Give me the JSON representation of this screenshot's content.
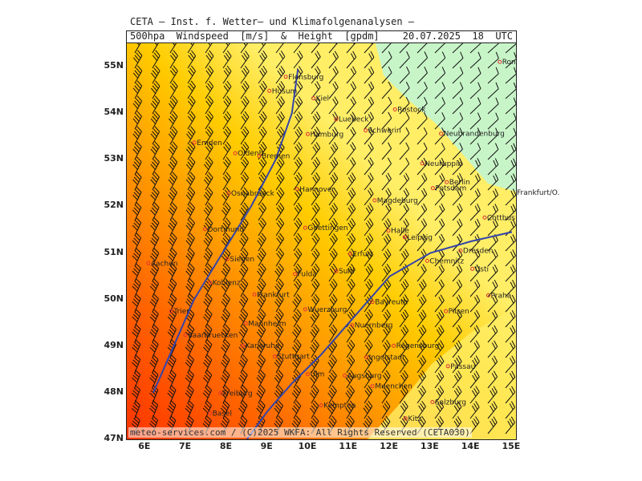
{
  "title": "CETA – Inst. f. Wetter– und Klimafolgenanalysen –",
  "header": {
    "product": "500hpa  Windspeed  [m/s]  &  Height  [gpdm]",
    "valid_time": "20.07.2025  18  UTC"
  },
  "copyright": "meteo-services.com / (C)2025 WKFA: All Rights Reserved (CETA030)",
  "axes": {
    "lat_labels": [
      "55N",
      "54N",
      "53N",
      "52N",
      "51N",
      "50N",
      "49N",
      "48N",
      "47N"
    ],
    "lon_labels": [
      "6E",
      "7E",
      "8E",
      "9E",
      "10E",
      "11E",
      "12E",
      "13E",
      "14E",
      "15E"
    ]
  },
  "colors": {
    "red": "#ff3300",
    "orange": "#ff9900",
    "amber": "#ffcc00",
    "yellow": "#ffee66",
    "light_green": "#c8f5c8",
    "contour": "#3344aa",
    "barb": "#111111",
    "city_marker": "#dd3333"
  },
  "cities": [
    {
      "name": "Flensburg",
      "lon": 9.45,
      "lat": 54.78
    },
    {
      "name": "Husum",
      "lon": 9.05,
      "lat": 54.48
    },
    {
      "name": "Kiel",
      "lon": 10.13,
      "lat": 54.32
    },
    {
      "name": "Rostock",
      "lon": 12.13,
      "lat": 54.08
    },
    {
      "name": "Luebeck",
      "lon": 10.69,
      "lat": 53.87
    },
    {
      "name": "Schwerin",
      "lon": 11.41,
      "lat": 53.63
    },
    {
      "name": "Neubrandenburg",
      "lon": 13.26,
      "lat": 53.56
    },
    {
      "name": "Hamburg",
      "lon": 9.99,
      "lat": 53.55
    },
    {
      "name": "Emden",
      "lon": 7.21,
      "lat": 53.37
    },
    {
      "name": "Oldenb.",
      "lon": 8.21,
      "lat": 53.14
    },
    {
      "name": "Bremen",
      "lon": 8.8,
      "lat": 53.08
    },
    {
      "name": "Neuruppin",
      "lon": 12.8,
      "lat": 52.92
    },
    {
      "name": "Berlin",
      "lon": 13.4,
      "lat": 52.52
    },
    {
      "name": "Potsdam",
      "lon": 13.06,
      "lat": 52.39
    },
    {
      "name": "Hannover",
      "lon": 9.73,
      "lat": 52.37
    },
    {
      "name": "Osnabrueck",
      "lon": 8.05,
      "lat": 52.28
    },
    {
      "name": "Magdeburg",
      "lon": 11.63,
      "lat": 52.13
    },
    {
      "name": "Cottbus",
      "lon": 14.33,
      "lat": 51.76
    },
    {
      "name": "Goettingen",
      "lon": 9.93,
      "lat": 51.54
    },
    {
      "name": "Halle",
      "lon": 11.97,
      "lat": 51.48
    },
    {
      "name": "Dortmund",
      "lon": 7.47,
      "lat": 51.51
    },
    {
      "name": "Leipzig",
      "lon": 12.37,
      "lat": 51.34
    },
    {
      "name": "Dresden",
      "lon": 13.74,
      "lat": 51.05
    },
    {
      "name": "Erfurt",
      "lon": 11.03,
      "lat": 50.98
    },
    {
      "name": "Siegen",
      "lon": 8.02,
      "lat": 50.87
    },
    {
      "name": "Chemnitz",
      "lon": 12.92,
      "lat": 50.83
    },
    {
      "name": "Aachen",
      "lon": 6.08,
      "lat": 50.78
    },
    {
      "name": "Suhl",
      "lon": 10.69,
      "lat": 50.61
    },
    {
      "name": "Fulda",
      "lon": 9.68,
      "lat": 50.55
    },
    {
      "name": "Koblenz",
      "lon": 7.59,
      "lat": 50.36
    },
    {
      "name": "Usti",
      "lon": 14.03,
      "lat": 50.66
    },
    {
      "name": "Praha",
      "lon": 14.42,
      "lat": 50.09
    },
    {
      "name": "Frankfurt",
      "lon": 8.68,
      "lat": 50.11
    },
    {
      "name": "Bayreuth",
      "lon": 11.58,
      "lat": 49.95
    },
    {
      "name": "Wuerzburg",
      "lon": 9.93,
      "lat": 49.79
    },
    {
      "name": "Pilsen",
      "lon": 13.38,
      "lat": 49.75
    },
    {
      "name": "Nuernberg",
      "lon": 11.08,
      "lat": 49.45
    },
    {
      "name": "Mannheim",
      "lon": 8.47,
      "lat": 49.49
    },
    {
      "name": "Trier",
      "lon": 6.64,
      "lat": 49.75
    },
    {
      "name": "Saarbruecken",
      "lon": 6.99,
      "lat": 49.24
    },
    {
      "name": "Karlsruhe",
      "lon": 8.4,
      "lat": 49.01
    },
    {
      "name": "Regensburg",
      "lon": 12.1,
      "lat": 49.01
    },
    {
      "name": "Ingolstadt",
      "lon": 11.43,
      "lat": 48.76
    },
    {
      "name": "Stuttgart",
      "lon": 9.18,
      "lat": 48.78
    },
    {
      "name": "Passau",
      "lon": 13.43,
      "lat": 48.57
    },
    {
      "name": "Ulm",
      "lon": 9.99,
      "lat": 48.4
    },
    {
      "name": "Augsburg",
      "lon": 10.9,
      "lat": 48.37
    },
    {
      "name": "Muenchen",
      "lon": 11.58,
      "lat": 48.14
    },
    {
      "name": "Freiburg",
      "lon": 7.85,
      "lat": 47.99
    },
    {
      "name": "Salzburg",
      "lon": 13.05,
      "lat": 47.8
    },
    {
      "name": "Kempten",
      "lon": 10.32,
      "lat": 47.73
    },
    {
      "name": "Basel",
      "lon": 7.59,
      "lat": 47.56
    },
    {
      "name": "Kitz",
      "lon": 12.39,
      "lat": 47.45
    },
    {
      "name": "Ronne",
      "lon": 14.7,
      "lat": 55.1
    }
  ],
  "offmap_label": "Frankfurt/O.",
  "height_contours": [
    {
      "points": [
        [
          9.75,
          54.95
        ],
        [
          9.6,
          54.0
        ],
        [
          9.2,
          53.0
        ],
        [
          8.6,
          52.0
        ],
        [
          7.9,
          51.0
        ],
        [
          7.2,
          50.0
        ],
        [
          6.7,
          49.0
        ],
        [
          6.2,
          48.0
        ]
      ]
    },
    {
      "points": [
        [
          15.0,
          51.45
        ],
        [
          14.0,
          51.25
        ],
        [
          13.0,
          51.0
        ],
        [
          12.0,
          50.5
        ],
        [
          11.0,
          49.5
        ],
        [
          10.3,
          48.8
        ],
        [
          9.6,
          48.2
        ],
        [
          9.0,
          47.6
        ],
        [
          8.5,
          47.0
        ]
      ]
    }
  ]
}
